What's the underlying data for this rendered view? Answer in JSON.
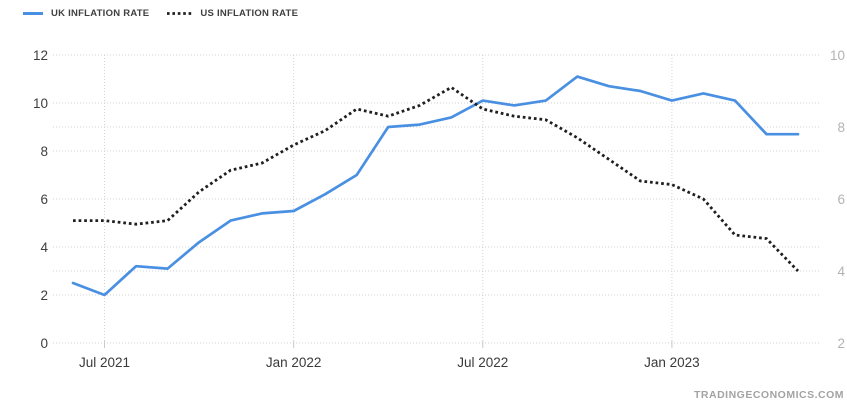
{
  "watermark": "TRADINGECONOMICS.COM",
  "colors": {
    "uk_line": "#4a90e2",
    "us_line": "#1f1f1f",
    "grid": "#d2d2d2",
    "left_axis_text": "#3f3f3f",
    "right_axis_text": "#b3b3b3",
    "x_axis_text": "#3a3a3a",
    "watermark_text": "#a3a3a3",
    "background": "#ffffff"
  },
  "chart_data": {
    "type": "line",
    "title": "",
    "grid": true,
    "legend_position": "top-left",
    "x": [
      "Jun 2021",
      "Jul 2021",
      "Aug 2021",
      "Sep 2021",
      "Oct 2021",
      "Nov 2021",
      "Dec 2021",
      "Jan 2022",
      "Feb 2022",
      "Mar 2022",
      "Apr 2022",
      "May 2022",
      "Jun 2022",
      "Jul 2022",
      "Aug 2022",
      "Sep 2022",
      "Oct 2022",
      "Nov 2022",
      "Dec 2022",
      "Jan 2023",
      "Feb 2023",
      "Mar 2023",
      "Apr 2023",
      "May 2023"
    ],
    "x_tick_labels": [
      "Jul 2021",
      "Jan 2022",
      "Jul 2022",
      "Jan 2023"
    ],
    "x_tick_indices": [
      1,
      7,
      13,
      19
    ],
    "left_axis": {
      "min": 0,
      "max": 12,
      "ticks": [
        0,
        2,
        4,
        6,
        8,
        10,
        12
      ]
    },
    "right_axis": {
      "min": 2,
      "max": 10,
      "ticks": [
        2,
        4,
        6,
        8,
        10
      ]
    },
    "series": [
      {
        "name": "UK INFLATION RATE",
        "axis": "left",
        "line_style": "solid",
        "color": "#4a90e2",
        "values": [
          2.5,
          2.0,
          3.2,
          3.1,
          4.2,
          5.1,
          5.4,
          5.5,
          6.2,
          7.0,
          9.0,
          9.1,
          9.4,
          10.1,
          9.9,
          10.1,
          11.1,
          10.7,
          10.5,
          10.1,
          10.4,
          10.1,
          8.7,
          8.7
        ]
      },
      {
        "name": "US INFLATION RATE",
        "axis": "right",
        "line_style": "dotted",
        "color": "#1f1f1f",
        "values": [
          5.4,
          5.4,
          5.3,
          5.4,
          6.2,
          6.8,
          7.0,
          7.5,
          7.9,
          8.5,
          8.3,
          8.6,
          9.1,
          8.5,
          8.3,
          8.2,
          7.7,
          7.1,
          6.5,
          6.4,
          6.0,
          5.0,
          4.9,
          4.0
        ]
      }
    ]
  }
}
